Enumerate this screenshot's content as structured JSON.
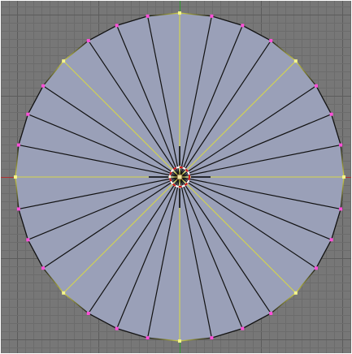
{
  "viewport": {
    "mode": "edit-mode",
    "view": "top-orthographic",
    "grid_visible": true
  },
  "mesh": {
    "object_type": "circle",
    "vertex_count": 32,
    "fill": "center",
    "selected_edge_step": 4,
    "selected_vertex_indices": [
      0,
      4,
      8,
      12,
      16,
      20,
      24,
      28
    ]
  },
  "colors": {
    "viewport_background": "#777777",
    "grid_minor": "#6c6c6c",
    "grid_major": "#5c5c5c",
    "face_fill": "#9aa0b8",
    "edge_unselected": "#111111",
    "edge_selected": "#d6d64a",
    "vertex_unselected": "#ff4fd8",
    "vertex_selected": "#f5f58a",
    "axis_x": "#b03030",
    "axis_y": "#2f9b2f",
    "cursor_ring_red": "#d41818",
    "cursor_ring_white": "#ffffff",
    "crosshair": "#000000",
    "object_origin": "#f0e6a0",
    "border": "#ffffff"
  },
  "icons": {
    "cursor": "3d-cursor-icon",
    "origin": "object-origin-icon"
  }
}
